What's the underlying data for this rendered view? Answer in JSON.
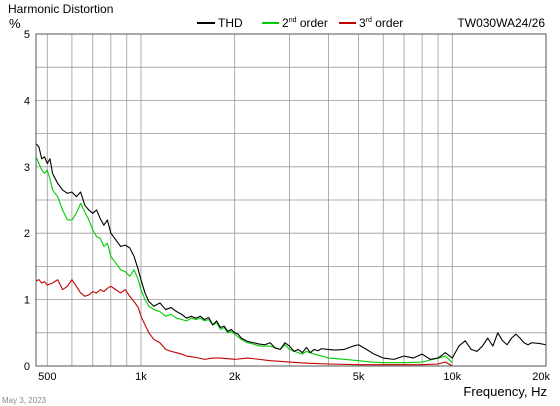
{
  "chart_data": {
    "type": "line",
    "title": "Harmonic Distortion",
    "ylabel": "%",
    "xlabel": "Frequency, Hz",
    "model": "TW030WA24/26",
    "date": "May 3, 2023",
    "x_scale": "log",
    "xlim": [
      460,
      20000
    ],
    "ylim": [
      0,
      5
    ],
    "grid": true,
    "legend_position": "top",
    "x_ticks": [
      {
        "value": 500,
        "label": "500"
      },
      {
        "value": 1000,
        "label": "1k"
      },
      {
        "value": 2000,
        "label": "2k"
      },
      {
        "value": 5000,
        "label": "5k"
      },
      {
        "value": 10000,
        "label": "10k"
      },
      {
        "value": 20000,
        "label": "20k"
      }
    ],
    "y_ticks": [
      {
        "value": 0,
        "label": "0"
      },
      {
        "value": 1,
        "label": "1"
      },
      {
        "value": 2,
        "label": "2"
      },
      {
        "value": 3,
        "label": "3"
      },
      {
        "value": 4,
        "label": "4"
      },
      {
        "value": 5,
        "label": "5"
      }
    ],
    "series": [
      {
        "name": "THD",
        "color": "#000000",
        "points": [
          [
            460,
            3.35
          ],
          [
            470,
            3.3
          ],
          [
            480,
            3.12
          ],
          [
            490,
            3.15
          ],
          [
            500,
            3.05
          ],
          [
            510,
            3.12
          ],
          [
            520,
            2.9
          ],
          [
            540,
            2.75
          ],
          [
            560,
            2.65
          ],
          [
            580,
            2.6
          ],
          [
            600,
            2.62
          ],
          [
            620,
            2.55
          ],
          [
            640,
            2.62
          ],
          [
            660,
            2.42
          ],
          [
            680,
            2.35
          ],
          [
            700,
            2.3
          ],
          [
            720,
            2.35
          ],
          [
            740,
            2.22
          ],
          [
            760,
            2.12
          ],
          [
            780,
            2.2
          ],
          [
            800,
            2.0
          ],
          [
            830,
            1.9
          ],
          [
            860,
            1.8
          ],
          [
            890,
            1.82
          ],
          [
            920,
            1.78
          ],
          [
            950,
            1.65
          ],
          [
            980,
            1.45
          ],
          [
            1000,
            1.3
          ],
          [
            1030,
            1.1
          ],
          [
            1060,
            0.97
          ],
          [
            1100,
            0.9
          ],
          [
            1150,
            0.95
          ],
          [
            1200,
            0.85
          ],
          [
            1250,
            0.88
          ],
          [
            1300,
            0.82
          ],
          [
            1350,
            0.78
          ],
          [
            1400,
            0.72
          ],
          [
            1450,
            0.75
          ],
          [
            1500,
            0.72
          ],
          [
            1550,
            0.75
          ],
          [
            1600,
            0.7
          ],
          [
            1650,
            0.73
          ],
          [
            1700,
            0.62
          ],
          [
            1750,
            0.68
          ],
          [
            1800,
            0.58
          ],
          [
            1850,
            0.6
          ],
          [
            1900,
            0.52
          ],
          [
            1950,
            0.55
          ],
          [
            2000,
            0.5
          ],
          [
            2050,
            0.48
          ],
          [
            2100,
            0.42
          ],
          [
            2200,
            0.37
          ],
          [
            2300,
            0.35
          ],
          [
            2400,
            0.33
          ],
          [
            2500,
            0.32
          ],
          [
            2600,
            0.35
          ],
          [
            2700,
            0.27
          ],
          [
            2800,
            0.25
          ],
          [
            2900,
            0.35
          ],
          [
            3000,
            0.3
          ],
          [
            3100,
            0.22
          ],
          [
            3200,
            0.25
          ],
          [
            3300,
            0.2
          ],
          [
            3400,
            0.28
          ],
          [
            3500,
            0.2
          ],
          [
            3600,
            0.25
          ],
          [
            3700,
            0.23
          ],
          [
            3800,
            0.26
          ],
          [
            4000,
            0.25
          ],
          [
            4200,
            0.24
          ],
          [
            4500,
            0.25
          ],
          [
            4800,
            0.3
          ],
          [
            5000,
            0.32
          ],
          [
            5300,
            0.25
          ],
          [
            5600,
            0.18
          ],
          [
            6000,
            0.12
          ],
          [
            6500,
            0.1
          ],
          [
            7000,
            0.15
          ],
          [
            7500,
            0.12
          ],
          [
            8000,
            0.18
          ],
          [
            8500,
            0.1
          ],
          [
            9000,
            0.12
          ],
          [
            9500,
            0.2
          ],
          [
            10000,
            0.12
          ],
          [
            10500,
            0.3
          ],
          [
            11000,
            0.38
          ],
          [
            11500,
            0.25
          ],
          [
            12000,
            0.22
          ],
          [
            12500,
            0.3
          ],
          [
            13000,
            0.42
          ],
          [
            13500,
            0.3
          ],
          [
            14000,
            0.5
          ],
          [
            14500,
            0.38
          ],
          [
            15000,
            0.32
          ],
          [
            15500,
            0.42
          ],
          [
            16000,
            0.48
          ],
          [
            16500,
            0.42
          ],
          [
            17000,
            0.35
          ],
          [
            17500,
            0.32
          ],
          [
            18000,
            0.35
          ],
          [
            19000,
            0.34
          ],
          [
            20000,
            0.32
          ]
        ]
      },
      {
        "name": "2nd order",
        "color": "#00cc00",
        "points": [
          [
            460,
            3.15
          ],
          [
            470,
            3.05
          ],
          [
            480,
            2.95
          ],
          [
            490,
            2.9
          ],
          [
            500,
            2.95
          ],
          [
            510,
            2.82
          ],
          [
            520,
            2.65
          ],
          [
            540,
            2.55
          ],
          [
            560,
            2.35
          ],
          [
            580,
            2.2
          ],
          [
            600,
            2.2
          ],
          [
            620,
            2.3
          ],
          [
            640,
            2.45
          ],
          [
            660,
            2.32
          ],
          [
            680,
            2.2
          ],
          [
            700,
            2.05
          ],
          [
            720,
            1.95
          ],
          [
            740,
            1.92
          ],
          [
            760,
            1.8
          ],
          [
            780,
            1.85
          ],
          [
            800,
            1.65
          ],
          [
            830,
            1.55
          ],
          [
            860,
            1.45
          ],
          [
            890,
            1.42
          ],
          [
            920,
            1.35
          ],
          [
            950,
            1.45
          ],
          [
            980,
            1.3
          ],
          [
            1000,
            1.15
          ],
          [
            1030,
            1.0
          ],
          [
            1060,
            0.9
          ],
          [
            1100,
            0.85
          ],
          [
            1150,
            0.82
          ],
          [
            1200,
            0.75
          ],
          [
            1250,
            0.78
          ],
          [
            1300,
            0.72
          ],
          [
            1350,
            0.7
          ],
          [
            1400,
            0.68
          ],
          [
            1450,
            0.72
          ],
          [
            1500,
            0.7
          ],
          [
            1550,
            0.72
          ],
          [
            1600,
            0.68
          ],
          [
            1650,
            0.7
          ],
          [
            1700,
            0.62
          ],
          [
            1750,
            0.65
          ],
          [
            1800,
            0.55
          ],
          [
            1850,
            0.58
          ],
          [
            1900,
            0.5
          ],
          [
            1950,
            0.52
          ],
          [
            2000,
            0.48
          ],
          [
            2100,
            0.4
          ],
          [
            2200,
            0.35
          ],
          [
            2300,
            0.33
          ],
          [
            2400,
            0.3
          ],
          [
            2600,
            0.3
          ],
          [
            2800,
            0.25
          ],
          [
            2900,
            0.32
          ],
          [
            3000,
            0.25
          ],
          [
            3200,
            0.2
          ],
          [
            3300,
            0.18
          ],
          [
            3400,
            0.22
          ],
          [
            3600,
            0.18
          ],
          [
            3800,
            0.15
          ],
          [
            4000,
            0.12
          ],
          [
            4500,
            0.1
          ],
          [
            5000,
            0.08
          ],
          [
            5500,
            0.06
          ],
          [
            6000,
            0.05
          ],
          [
            7000,
            0.05
          ],
          [
            8000,
            0.06
          ],
          [
            9000,
            0.12
          ],
          [
            9500,
            0.15
          ],
          [
            10000,
            0.05
          ]
        ]
      },
      {
        "name": "3rd order",
        "color": "#c00000",
        "points": [
          [
            460,
            1.28
          ],
          [
            470,
            1.3
          ],
          [
            480,
            1.25
          ],
          [
            490,
            1.27
          ],
          [
            500,
            1.22
          ],
          [
            520,
            1.25
          ],
          [
            540,
            1.3
          ],
          [
            560,
            1.15
          ],
          [
            580,
            1.2
          ],
          [
            600,
            1.3
          ],
          [
            620,
            1.2
          ],
          [
            640,
            1.1
          ],
          [
            660,
            1.05
          ],
          [
            680,
            1.07
          ],
          [
            700,
            1.12
          ],
          [
            720,
            1.1
          ],
          [
            740,
            1.15
          ],
          [
            760,
            1.12
          ],
          [
            780,
            1.17
          ],
          [
            800,
            1.2
          ],
          [
            830,
            1.15
          ],
          [
            860,
            1.1
          ],
          [
            890,
            1.15
          ],
          [
            920,
            1.05
          ],
          [
            950,
            0.97
          ],
          [
            980,
            0.88
          ],
          [
            1000,
            0.75
          ],
          [
            1030,
            0.62
          ],
          [
            1060,
            0.5
          ],
          [
            1100,
            0.4
          ],
          [
            1150,
            0.35
          ],
          [
            1200,
            0.25
          ],
          [
            1250,
            0.22
          ],
          [
            1300,
            0.2
          ],
          [
            1350,
            0.18
          ],
          [
            1400,
            0.15
          ],
          [
            1450,
            0.14
          ],
          [
            1500,
            0.13
          ],
          [
            1600,
            0.1
          ],
          [
            1700,
            0.12
          ],
          [
            1800,
            0.12
          ],
          [
            1900,
            0.11
          ],
          [
            2000,
            0.1
          ],
          [
            2200,
            0.12
          ],
          [
            2400,
            0.1
          ],
          [
            2600,
            0.08
          ],
          [
            2800,
            0.07
          ],
          [
            3000,
            0.06
          ],
          [
            3200,
            0.05
          ],
          [
            3500,
            0.04
          ],
          [
            4000,
            0.03
          ],
          [
            5000,
            0.02
          ],
          [
            6000,
            0.02
          ],
          [
            8000,
            0.02
          ],
          [
            9000,
            0.03
          ],
          [
            9500,
            0.06
          ],
          [
            10000,
            0.0
          ]
        ]
      }
    ]
  }
}
